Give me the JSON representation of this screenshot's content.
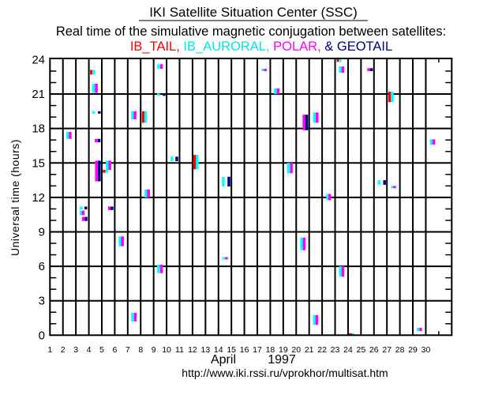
{
  "header": {
    "title": "IKI Satellite Situation Center (SSC)",
    "subtitle": "Real time of the simulative magnetic conjugation between satellites:",
    "sat_names": [
      "IB_TAIL,",
      "IB_AURORAL,",
      "POLAR,",
      "& GEOTAIL"
    ]
  },
  "footer": {
    "url": "http://www.iki.rssi.ru/vprokhor/multisat.htm"
  },
  "chart_data": {
    "type": "scatter",
    "title": "Real time of the simulative magnetic conjugation between satellites",
    "xlabel_month": "April",
    "xlabel_year": "1997",
    "ylabel": "Universal time (hours)",
    "xlim": [
      1,
      32
    ],
    "ylim": [
      0,
      24.1
    ],
    "x_ticks": [
      1,
      2,
      3,
      4,
      5,
      6,
      7,
      8,
      9,
      10,
      11,
      12,
      13,
      14,
      15,
      16,
      17,
      18,
      19,
      20,
      21,
      22,
      23,
      24,
      25,
      26,
      27,
      28,
      29,
      30
    ],
    "x_tick_labels": [
      "1",
      "2",
      "3",
      "4",
      "5",
      "6",
      "7",
      "8",
      "9",
      "10",
      "11",
      "12",
      "13",
      "14",
      "15",
      "16",
      "17",
      "18",
      "19",
      "20",
      "21",
      "22",
      "23",
      "24",
      "25",
      "26",
      "27",
      "28",
      "29",
      "30"
    ],
    "y_ticks": [
      0,
      3,
      6,
      9,
      12,
      15,
      18,
      21,
      24
    ],
    "y_tick_labels": [
      "0",
      "3",
      "6",
      "9",
      "12",
      "15",
      "18",
      "21",
      "24"
    ],
    "grid": true,
    "segment_format": "[day position, start hour UT, end hour UT]",
    "series": [
      {
        "name": "IB_TAIL",
        "color": "#ff0000",
        "segments": [
          [
            4.09,
            22.7,
            23.1
          ],
          [
            8.1,
            18.5,
            19.5
          ],
          [
            5.07,
            14.15,
            14.4
          ],
          [
            12.06,
            14.45,
            15.7
          ],
          [
            23.12,
            23.8,
            24.1
          ],
          [
            27.1,
            20.3,
            21.2
          ],
          [
            24.07,
            0,
            0.15
          ]
        ]
      },
      {
        "name": "IB_AURORAL",
        "color": "#00ffff",
        "segments": [
          [
            4.26,
            22.7,
            23.1
          ],
          [
            4.27,
            21.1,
            21.9
          ],
          [
            4.27,
            19.3,
            19.5
          ],
          [
            2.26,
            17.1,
            17.7
          ],
          [
            7.26,
            18.8,
            19.5
          ],
          [
            8.28,
            18.5,
            19.5
          ],
          [
            9.27,
            23.2,
            23.6
          ],
          [
            9.27,
            20.85,
            21.05
          ],
          [
            5.31,
            14.4,
            15.2
          ],
          [
            5.27,
            14.15,
            14.4
          ],
          [
            8.3,
            12.0,
            12.7
          ],
          [
            3.3,
            10.95,
            11.2
          ],
          [
            3.3,
            10.45,
            10.85
          ],
          [
            10.31,
            15.15,
            15.55
          ],
          [
            6.29,
            7.75,
            8.6
          ],
          [
            9.27,
            5.4,
            6.15
          ],
          [
            7.26,
            1.2,
            1.95
          ],
          [
            17.32,
            23.0,
            23.2
          ],
          [
            18.3,
            21.0,
            21.5
          ],
          [
            21.3,
            18.5,
            19.4
          ],
          [
            12.26,
            14.45,
            15.7
          ],
          [
            14.27,
            12.95,
            13.8
          ],
          [
            19.29,
            14.1,
            15.0
          ],
          [
            20.31,
            7.4,
            8.5
          ],
          [
            14.31,
            6.6,
            6.8
          ],
          [
            21.3,
            0.9,
            1.75
          ],
          [
            23.28,
            23.8,
            24.1
          ],
          [
            23.3,
            22.85,
            23.4
          ],
          [
            27.31,
            20.3,
            21.2
          ],
          [
            30.31,
            16.6,
            17.05
          ],
          [
            22.32,
            11.75,
            12.3
          ],
          [
            26.29,
            13.1,
            13.5
          ],
          [
            27.32,
            12.8,
            13.0
          ],
          [
            23.3,
            5.1,
            6.0
          ],
          [
            24.27,
            0,
            0.15
          ],
          [
            29.29,
            0.35,
            0.65
          ]
        ]
      },
      {
        "name": "POLAR",
        "color": "#ff00ff",
        "segments": [
          [
            4.48,
            21.1,
            21.9
          ],
          [
            2.46,
            17.1,
            17.7
          ],
          [
            4.46,
            16.8,
            17.1
          ],
          [
            7.46,
            18.8,
            19.5
          ],
          [
            9.5,
            23.2,
            23.6
          ],
          [
            4.48,
            13.4,
            15.2
          ],
          [
            5.51,
            14.4,
            15.2
          ],
          [
            8.5,
            12.0,
            12.7
          ],
          [
            3.46,
            10.45,
            10.85
          ],
          [
            3.46,
            9.95,
            10.3
          ],
          [
            5.49,
            10.9,
            11.2
          ],
          [
            6.49,
            7.75,
            8.6
          ],
          [
            9.5,
            5.4,
            6.15
          ],
          [
            7.48,
            1.2,
            1.95
          ],
          [
            17.52,
            23.0,
            23.2
          ],
          [
            18.5,
            21.0,
            21.5
          ],
          [
            20.49,
            17.85,
            19.2
          ],
          [
            21.51,
            18.5,
            19.4
          ],
          [
            19.52,
            14.1,
            15.0
          ],
          [
            20.51,
            7.4,
            8.5
          ],
          [
            14.52,
            6.6,
            6.8
          ],
          [
            21.49,
            0.9,
            1.75
          ],
          [
            23.5,
            22.85,
            23.4
          ],
          [
            25.49,
            23.0,
            23.25
          ],
          [
            30.51,
            16.6,
            17.05
          ],
          [
            22.48,
            11.75,
            12.3
          ],
          [
            27.49,
            12.8,
            13.0
          ],
          [
            23.5,
            5.1,
            6.0
          ],
          [
            29.5,
            0.35,
            0.65
          ]
        ]
      },
      {
        "name": "GEOTAIL",
        "color": "#000080",
        "segments": [
          [
            4.7,
            19.3,
            19.5
          ],
          [
            4.68,
            16.8,
            17.1
          ],
          [
            9.7,
            20.85,
            21.05
          ],
          [
            4.7,
            13.4,
            15.2
          ],
          [
            3.66,
            10.95,
            11.2
          ],
          [
            3.68,
            9.95,
            10.3
          ],
          [
            5.68,
            10.9,
            11.2
          ],
          [
            10.68,
            15.15,
            15.55
          ],
          [
            20.7,
            17.85,
            19.2
          ],
          [
            14.7,
            12.95,
            13.8
          ],
          [
            25.7,
            23.0,
            23.25
          ],
          [
            26.71,
            13.1,
            13.5
          ]
        ]
      }
    ]
  }
}
